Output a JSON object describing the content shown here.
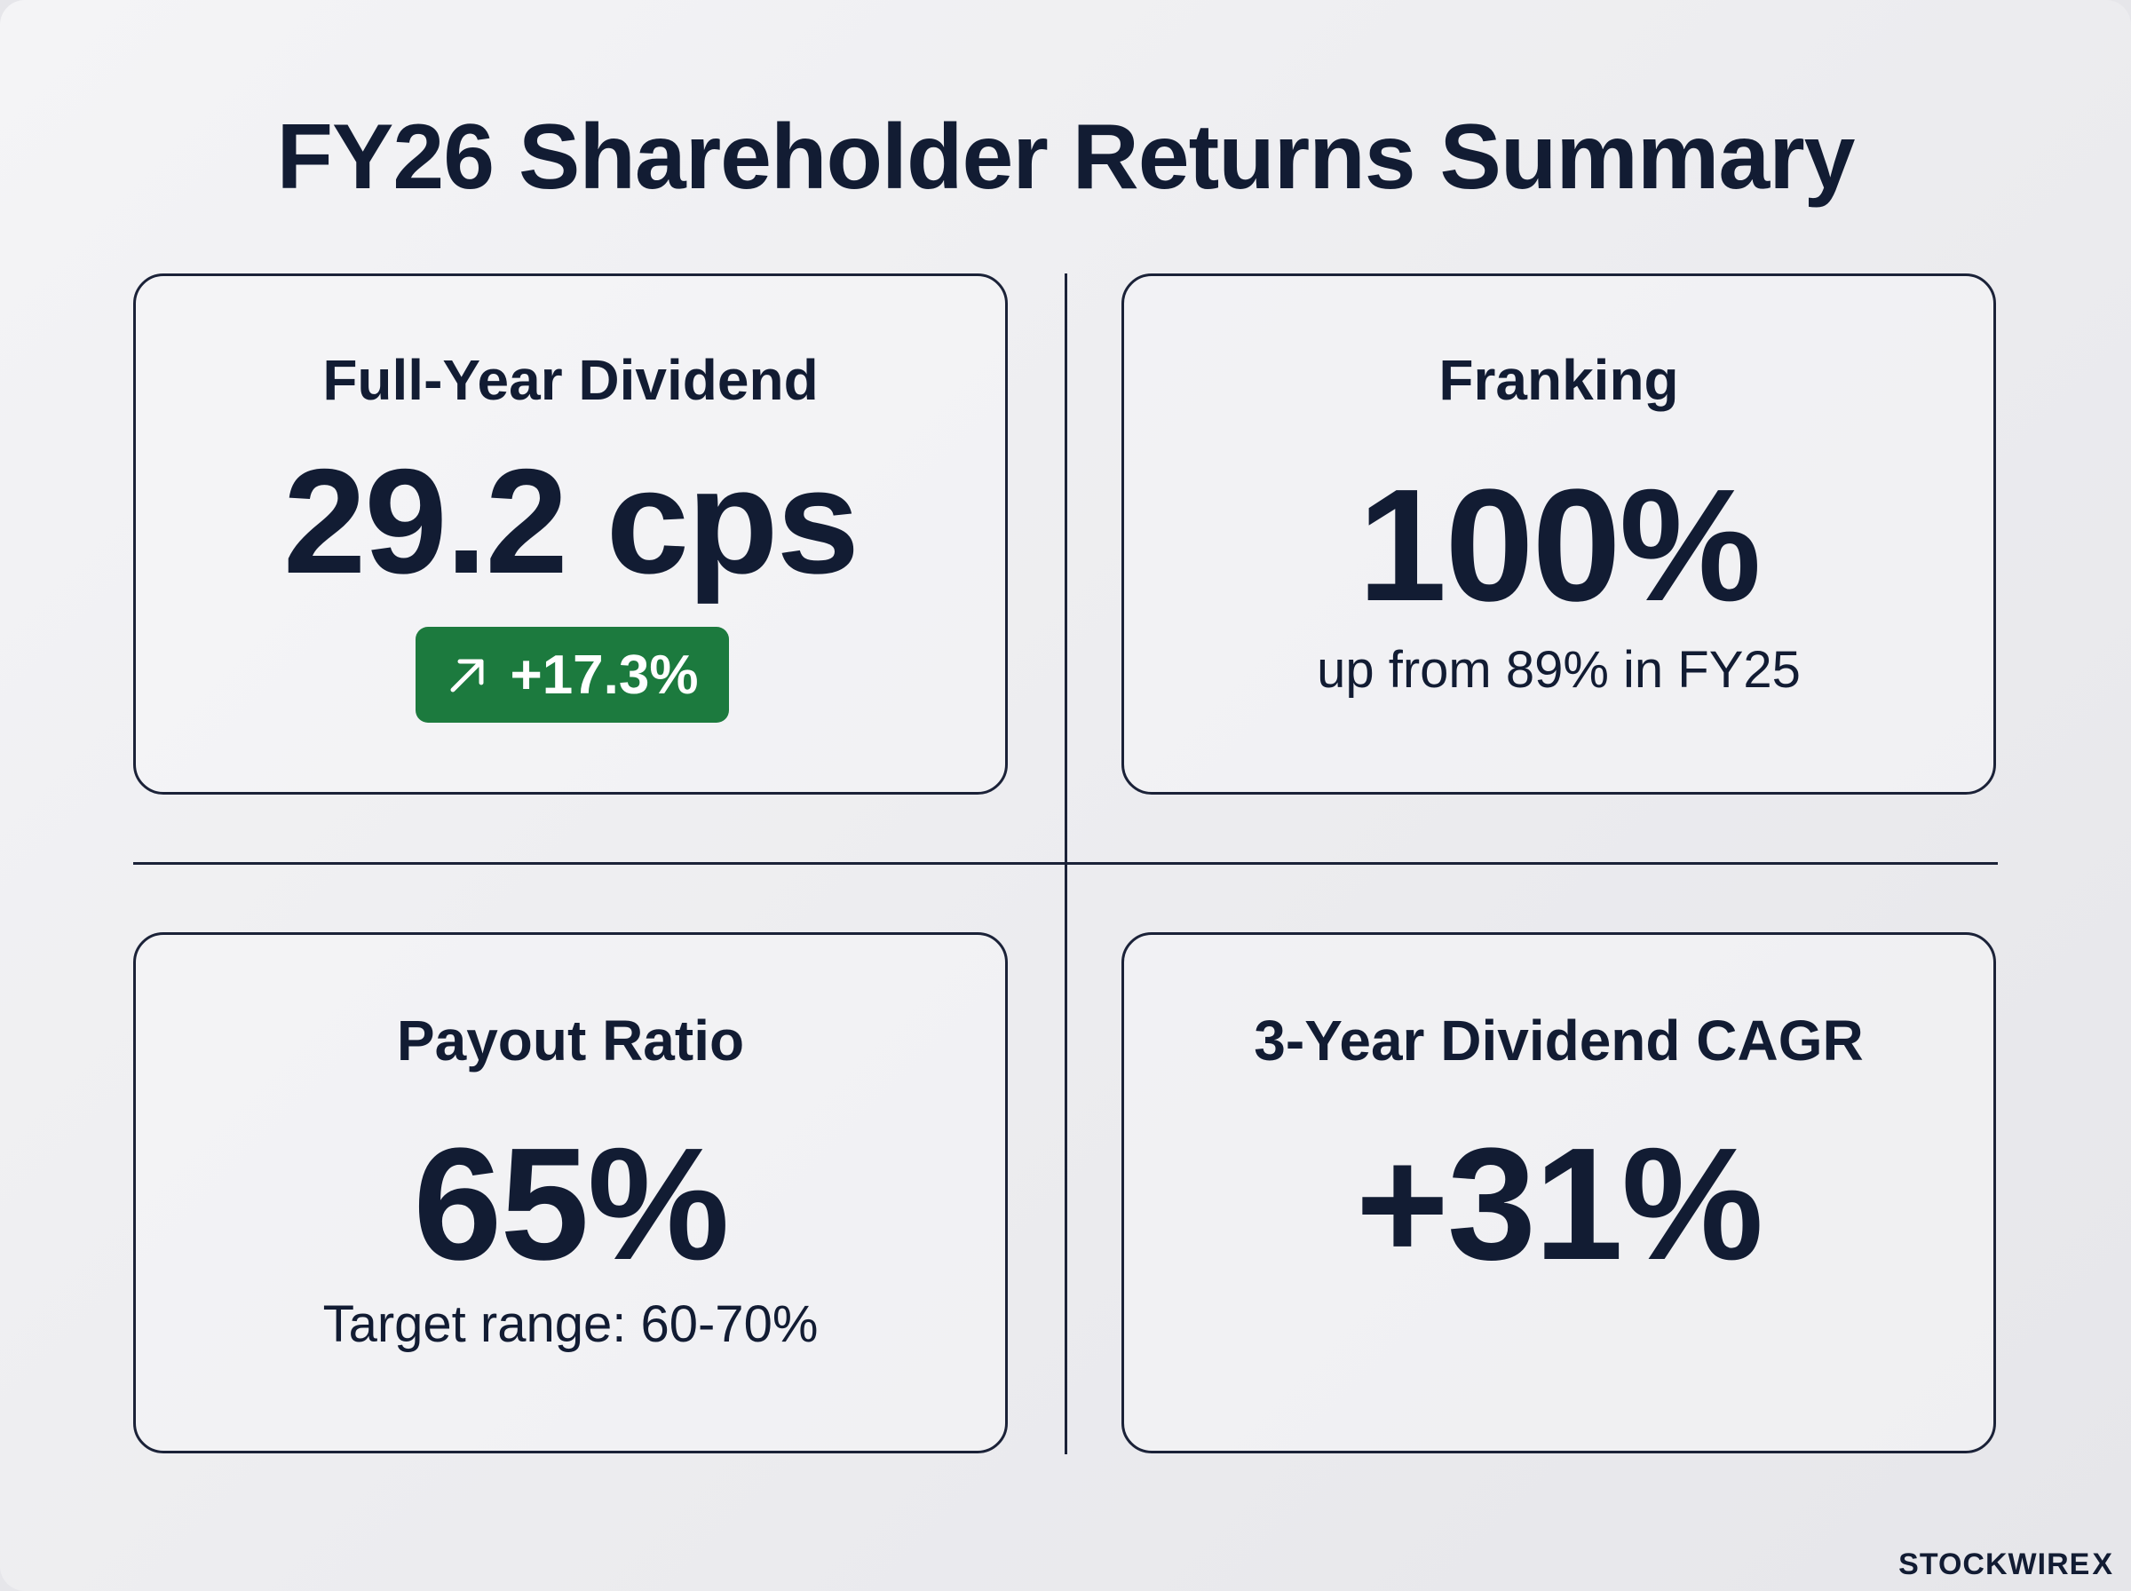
{
  "title": "FY26 Shareholder Returns Summary",
  "cards": [
    {
      "label": "Full-Year Dividend",
      "value": "29.2 cps",
      "badge": {
        "icon": "arrow-up-right-icon",
        "text": "+17.3%",
        "color": "#1c7a3e"
      }
    },
    {
      "label": "Franking",
      "value": "100%",
      "note": "up from 89% in FY25"
    },
    {
      "label": "Payout Ratio",
      "value": "65%",
      "note": "Target range: 60-70%"
    },
    {
      "label": "3-Year Dividend CAGR",
      "value": "+31%"
    }
  ],
  "brand": {
    "name": "STOCKWIRE",
    "mark": "X"
  },
  "colors": {
    "text": "#121c33",
    "positive": "#1c7a3e",
    "background": "#ececef"
  }
}
